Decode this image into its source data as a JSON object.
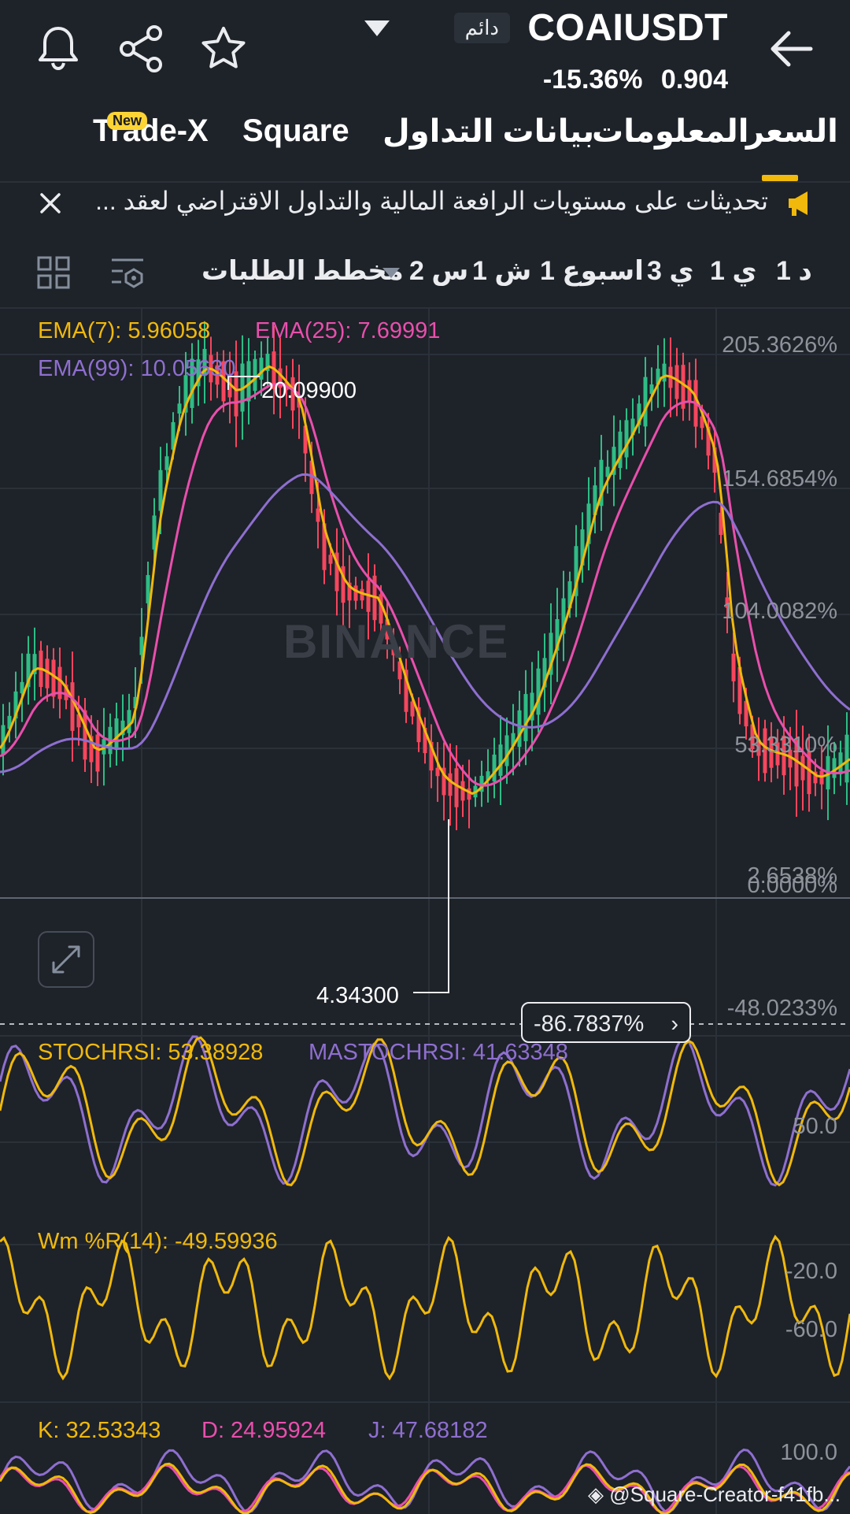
{
  "header": {
    "pair": "COAIUSDT",
    "contract_type": "دائم",
    "price": "0.904",
    "change": "-15.36%",
    "icons": [
      "back-arrow-icon",
      "bell-icon",
      "share-icon",
      "star-icon",
      "chevron-down-icon"
    ]
  },
  "tabs": [
    {
      "label": "السعر",
      "active": true
    },
    {
      "label": "المعلومات"
    },
    {
      "label": "بيانات التداول"
    },
    {
      "label": "Square"
    },
    {
      "label": "Trade-X",
      "badge": "New"
    }
  ],
  "announcement": {
    "text": "تحديثات على مستويات الرافعة المالية والتداول الاقتراضي لعقد ...",
    "icons": [
      "megaphone-icon",
      "close-icon"
    ]
  },
  "timeframes": {
    "items": [
      "1 د",
      "1 ي",
      "3 ي",
      "1 اسبوع",
      "1 ش",
      "2 س"
    ],
    "order_book": "مخطط الطلبات",
    "icons": [
      "chart-settings-icon",
      "grid-layout-icon"
    ]
  },
  "main_chart": {
    "ema7": "EMA(7): 5.96058",
    "ema25": "EMA(25): 7.69991",
    "ema99": "EMA(99): 10.05630",
    "high_label": "20.09900",
    "low_label": "4.34300",
    "axis": [
      "205.3626%",
      "154.6854%",
      "104.0082%",
      "53.3310%",
      "2.6538%",
      "0.0000%",
      "-48.0233%"
    ],
    "crosshair_value": "-86.7837%",
    "watermark": "BINANCE",
    "colors": {
      "ema7": "#f0b90b",
      "ema25": "#e84fac",
      "ema99": "#8e6fcf",
      "up": "#2ebd85",
      "down": "#f6465d"
    }
  },
  "stochrsi": {
    "label": "STOCHRSI: 53.38928",
    "ma_label": "MASTOCHRSI: 41.63348",
    "axis": [
      "50.0"
    ]
  },
  "wmr": {
    "label": "Wm %R(14): -49.59936",
    "axis": [
      "-20.0",
      "-60.0"
    ]
  },
  "kdj": {
    "k": "K: 32.53343",
    "d": "D: 24.95924",
    "j": "J: 47.68182",
    "axis": [
      "100.0"
    ]
  },
  "footer": {
    "credit": "@Square-Creator-f41fb..."
  }
}
